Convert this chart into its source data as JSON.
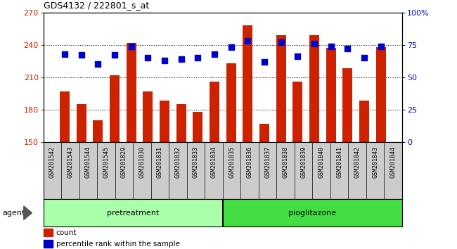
{
  "title": "GDS4132 / 222801_s_at",
  "samples": [
    "GSM201542",
    "GSM201543",
    "GSM201544",
    "GSM201545",
    "GSM201829",
    "GSM201830",
    "GSM201831",
    "GSM201832",
    "GSM201833",
    "GSM201834",
    "GSM201835",
    "GSM201836",
    "GSM201837",
    "GSM201838",
    "GSM201839",
    "GSM201840",
    "GSM201841",
    "GSM201842",
    "GSM201843",
    "GSM201844"
  ],
  "counts": [
    197,
    185,
    170,
    212,
    242,
    197,
    188,
    185,
    178,
    206,
    223,
    258,
    167,
    249,
    206,
    249,
    237,
    218,
    188,
    238
  ],
  "percentiles": [
    68,
    67,
    60,
    67,
    74,
    65,
    63,
    64,
    65,
    68,
    73,
    78,
    62,
    77,
    66,
    76,
    74,
    72,
    65,
    74
  ],
  "pretreatment_count": 10,
  "pioglitazone_count": 10,
  "ylim_left": [
    150,
    270
  ],
  "ylim_right": [
    0,
    100
  ],
  "yticks_left": [
    150,
    180,
    210,
    240,
    270
  ],
  "yticks_right": [
    0,
    25,
    50,
    75,
    100
  ],
  "yticklabels_right": [
    "0",
    "25",
    "50",
    "75",
    "100%"
  ],
  "bar_color": "#cc2200",
  "dot_color": "#0000cc",
  "bg_color": "#cccccc",
  "pretreatment_color": "#aaffaa",
  "pioglitazone_color": "#44dd44",
  "legend_bar_label": "count",
  "legend_dot_label": "percentile rank within the sample",
  "agent_label": "agent",
  "pretreatment_label": "pretreatment",
  "pioglitazone_label": "pioglitazone",
  "bar_width": 0.6,
  "dot_size": 28,
  "dot_marker": "s"
}
